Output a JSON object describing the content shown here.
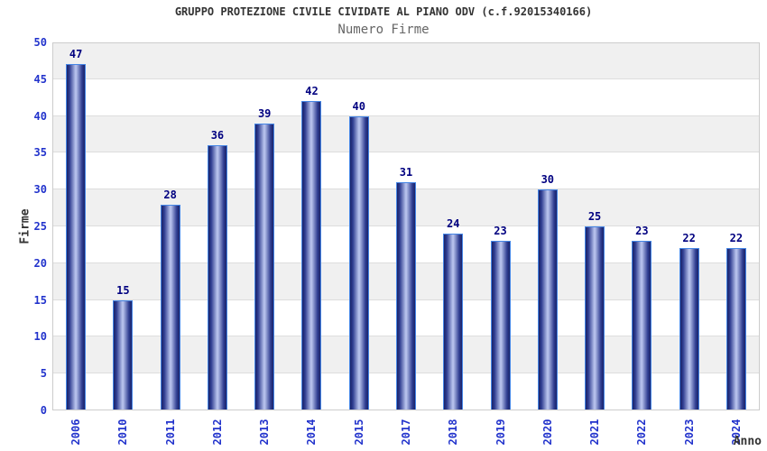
{
  "chart_data": {
    "type": "bar",
    "title": "GRUPPO PROTEZIONE CIVILE CIVIDATE AL PIANO ODV (c.f.92015340166)",
    "subtitle": "Numero Firme",
    "xlabel": "Anno",
    "ylabel": "Firme",
    "categories": [
      "2006",
      "2010",
      "2011",
      "2012",
      "2013",
      "2014",
      "2015",
      "2017",
      "2018",
      "2019",
      "2020",
      "2021",
      "2022",
      "2023",
      "2024"
    ],
    "values": [
      47,
      15,
      28,
      36,
      39,
      42,
      40,
      31,
      24,
      23,
      30,
      25,
      23,
      22,
      22
    ],
    "ylim": [
      0,
      50
    ],
    "ytick_step": 5,
    "grid": true,
    "legend": "none",
    "band_fill": "alternate-5-units",
    "colors": {
      "bar_border": "#4586e6",
      "bar_dark": "#1a2368",
      "bar_mid": "#2e3c90",
      "bar_light": "#b7c2ec",
      "tick_label": "#2233cc",
      "value_label": "#000080",
      "title": "#333333",
      "subtitle": "#666666",
      "axis_title": "#333333",
      "band": "#f0f0f0",
      "gridline": "#dddddd",
      "plot_border": "#cccccc",
      "background": "#ffffff"
    }
  }
}
